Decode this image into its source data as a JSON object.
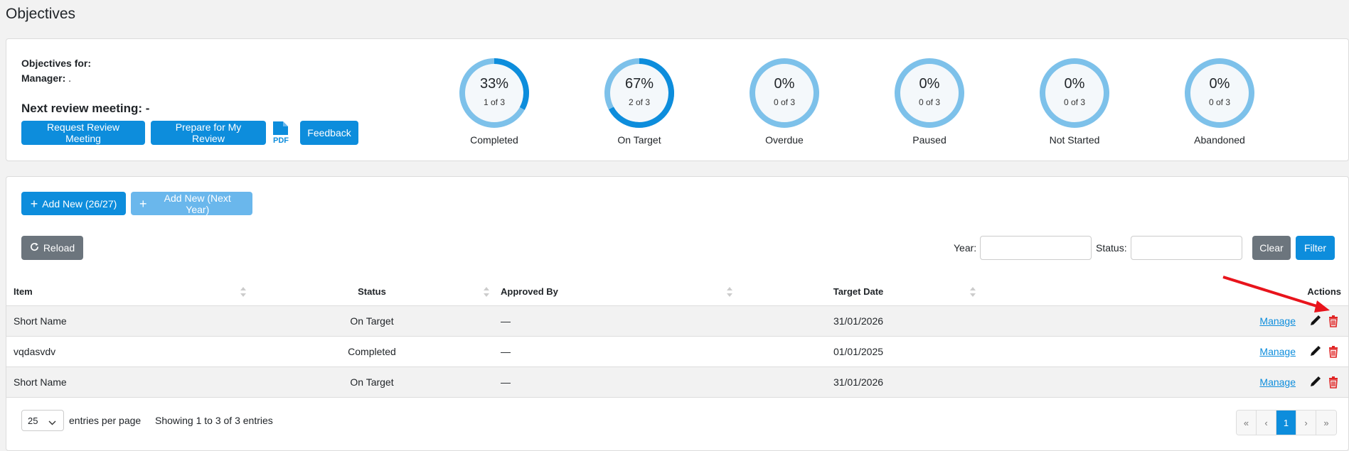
{
  "page_title": "Objectives",
  "info": {
    "objectives_for_label": "Objectives for:",
    "objectives_for_value": "",
    "manager_label": "Manager:",
    "manager_value": ".",
    "next_review_label": "Next review meeting: -"
  },
  "buttons": {
    "request_review": "Request Review Meeting",
    "prepare_review": "Prepare for My Review",
    "pdf_icon": "pdf-icon",
    "feedback": "Feedback",
    "add_new": "Add New (26/27)",
    "add_new_next": "Add New (Next Year)",
    "reload": "Reload",
    "clear": "Clear",
    "filter": "Filter"
  },
  "gauges": [
    {
      "pct": "33%",
      "count": "1 of 3",
      "label": "Completed",
      "fraction": 0.33
    },
    {
      "pct": "67%",
      "count": "2 of 3",
      "label": "On Target",
      "fraction": 0.67
    },
    {
      "pct": "0%",
      "count": "0 of 3",
      "label": "Overdue",
      "fraction": 0
    },
    {
      "pct": "0%",
      "count": "0 of 3",
      "label": "Paused",
      "fraction": 0
    },
    {
      "pct": "0%",
      "count": "0 of 3",
      "label": "Not Started",
      "fraction": 0
    },
    {
      "pct": "0%",
      "count": "0 of 3",
      "label": "Abandoned",
      "fraction": 0
    }
  ],
  "filters": {
    "year_label": "Year:",
    "year_value": "",
    "status_label": "Status:",
    "status_value": ""
  },
  "table": {
    "headers": [
      "Item",
      "Status",
      "Approved By",
      "Target Date",
      "Actions"
    ],
    "rows": [
      {
        "item": "Short Name",
        "status": "On Target",
        "approved_by": "—",
        "target_date": "31/01/2026",
        "manage": "Manage"
      },
      {
        "item": "vqdasvdv",
        "status": "Completed",
        "approved_by": "—",
        "target_date": "01/01/2025",
        "manage": "Manage"
      },
      {
        "item": "Short Name",
        "status": "On Target",
        "approved_by": "—",
        "target_date": "31/01/2026",
        "manage": "Manage"
      }
    ]
  },
  "footer": {
    "page_size": "25",
    "per_page_text": "entries per page",
    "showing_text": "Showing 1 to 3 of 3 entries",
    "pager": [
      "«",
      "‹",
      "1",
      "›",
      "»"
    ],
    "current_page": "1"
  },
  "colors": {
    "primary": "#0d8ddc",
    "ring_track": "#7dc1ea",
    "ring_fill": "#0d8ddc",
    "danger": "#e02424",
    "annotation_arrow": "#e8141c"
  }
}
